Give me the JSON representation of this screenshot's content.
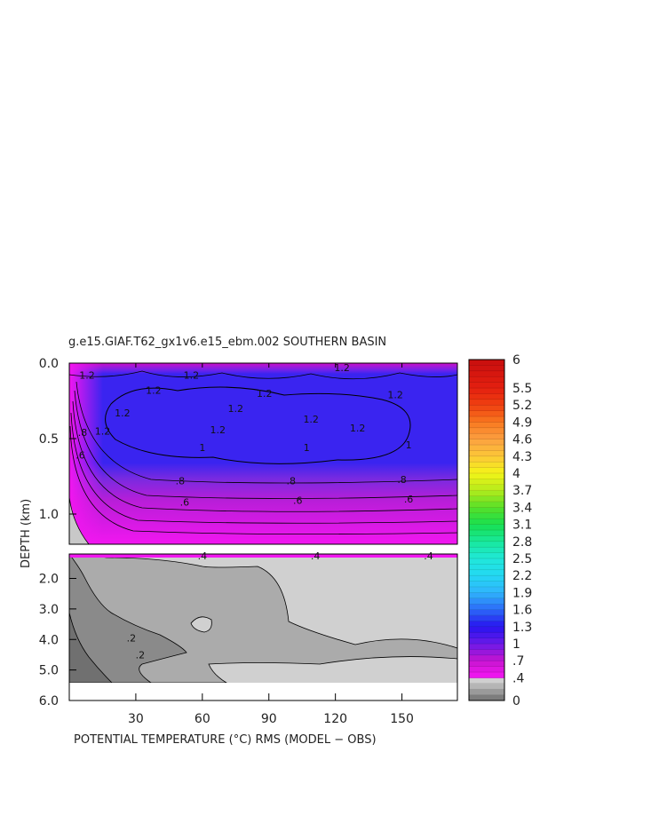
{
  "chart_data": {
    "type": "heatmap",
    "title": "g.e15.GIAF.T62_gx1v6.e15_ebm.002 SOUTHERN BASIN",
    "xlabel": "POTENTIAL TEMPERATURE (°C) RMS (MODEL − OBS)",
    "ylabel": "DEPTH (km)",
    "xlim": [
      0,
      175
    ],
    "x_ticks": [
      30,
      60,
      90,
      120,
      150
    ],
    "x_tick_labels": [
      "30",
      "60",
      "90",
      "120",
      "150"
    ],
    "upper_panel": {
      "ylim": [
        0.0,
        1.2
      ],
      "y_ticks": [
        0.0,
        0.5,
        1.0
      ],
      "y_tick_labels": [
        "0.0",
        "0.5",
        "1.0"
      ]
    },
    "lower_panel": {
      "ylim": [
        1.2,
        6.0
      ],
      "y_ticks": [
        2.0,
        3.0,
        4.0,
        5.0,
        6.0
      ],
      "y_tick_labels": [
        "2.0",
        "3.0",
        "4.0",
        "5.0",
        "6.0"
      ]
    },
    "colorbar": {
      "min": 0,
      "max": 6,
      "tick_values": [
        6,
        5.5,
        5.2,
        4.9,
        4.6,
        4.3,
        4,
        3.7,
        3.4,
        3.1,
        2.8,
        2.5,
        2.2,
        1.9,
        1.6,
        1.3,
        1,
        0.7,
        0.4,
        0
      ],
      "tick_labels": [
        "6",
        "5.5",
        "5.2",
        "4.9",
        "4.6",
        "4.3",
        "4",
        "3.7",
        "3.4",
        "3.1",
        "2.8",
        "2.5",
        "2.2",
        "1.9",
        "1.6",
        "1.3",
        "1",
        ".7",
        ".4",
        "0"
      ]
    },
    "contour_labels": [
      {
        "text": "1.2",
        "x": 8,
        "y": 0.08
      },
      {
        "text": "1.2",
        "x": 55,
        "y": 0.08
      },
      {
        "text": "1.2",
        "x": 123,
        "y": 0.03
      },
      {
        "text": "1.2",
        "x": 38,
        "y": 0.18
      },
      {
        "text": "1.2",
        "x": 88,
        "y": 0.2
      },
      {
        "text": "1.2",
        "x": 147,
        "y": 0.21
      },
      {
        "text": "1.2",
        "x": 24,
        "y": 0.33
      },
      {
        "text": "1.2",
        "x": 75,
        "y": 0.3
      },
      {
        "text": "1.2",
        "x": 109,
        "y": 0.37
      },
      {
        "text": "1.2",
        "x": 130,
        "y": 0.43
      },
      {
        "text": "1.2",
        "x": 67,
        "y": 0.44
      },
      {
        "text": "1.2",
        "x": 15,
        "y": 0.45
      },
      {
        "text": "1",
        "x": 60,
        "y": 0.56
      },
      {
        "text": "1",
        "x": 107,
        "y": 0.56
      },
      {
        "text": "1",
        "x": 153,
        "y": 0.54
      },
      {
        "text": ".8",
        "x": 6,
        "y": 0.46
      },
      {
        "text": ".8",
        "x": 50,
        "y": 0.78
      },
      {
        "text": ".8",
        "x": 100,
        "y": 0.78
      },
      {
        "text": ".8",
        "x": 150,
        "y": 0.77
      },
      {
        "text": ".6",
        "x": 5,
        "y": 0.61
      },
      {
        "text": ".6",
        "x": 52,
        "y": 0.92
      },
      {
        "text": ".6",
        "x": 103,
        "y": 0.91
      },
      {
        "text": ".6",
        "x": 153,
        "y": 0.9
      },
      {
        "text": ".4",
        "x": 60,
        "y": 1.26
      },
      {
        "text": ".4",
        "x": 111,
        "y": 1.26
      },
      {
        "text": ".4",
        "x": 162,
        "y": 1.26
      },
      {
        "text": ".2",
        "x": 28,
        "y": 3.95
      },
      {
        "text": ".2",
        "x": 32,
        "y": 4.5
      }
    ]
  }
}
